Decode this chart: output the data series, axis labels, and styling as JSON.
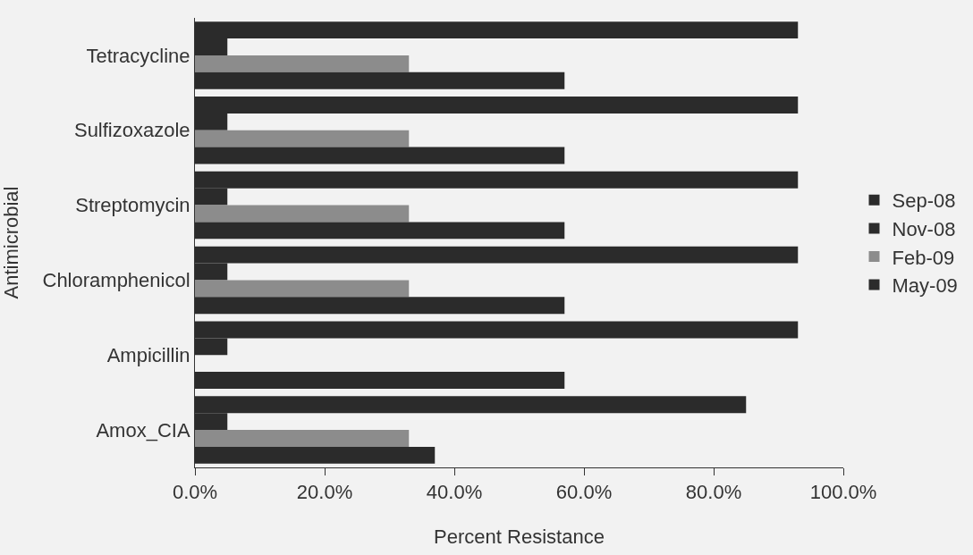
{
  "chart_data": {
    "type": "bar",
    "orientation": "horizontal",
    "xlabel": "Percent Resistance",
    "ylabel": "Antimicrobial",
    "categories": [
      "Tetracycline",
      "Sulfizoxazole",
      "Streptomycin",
      "Chloramphenicol",
      "Ampicillin",
      "Amox_CIA"
    ],
    "series": [
      {
        "name": "Sep-08",
        "color": "#2b2b2b",
        "values": [
          93,
          93,
          93,
          93,
          93,
          85
        ]
      },
      {
        "name": "Nov-08",
        "color": "#2b2b2b",
        "values": [
          5,
          5,
          5,
          5,
          5,
          5
        ]
      },
      {
        "name": "Feb-09",
        "color": "#8c8c8c",
        "values": [
          33,
          33,
          33,
          33,
          null,
          33
        ]
      },
      {
        "name": "May-09",
        "color": "#2b2b2b",
        "values": [
          57,
          57,
          57,
          57,
          57,
          37
        ]
      }
    ],
    "xlim": [
      0,
      100
    ],
    "xticks": [
      {
        "value": 0,
        "label": "0.0%"
      },
      {
        "value": 20,
        "label": "20.0%"
      },
      {
        "value": 40,
        "label": "40.0%"
      },
      {
        "value": 60,
        "label": "60.0%"
      },
      {
        "value": 80,
        "label": "80.0%"
      },
      {
        "value": 100,
        "label": "100.0%"
      }
    ],
    "grid": false,
    "legend": "right"
  }
}
